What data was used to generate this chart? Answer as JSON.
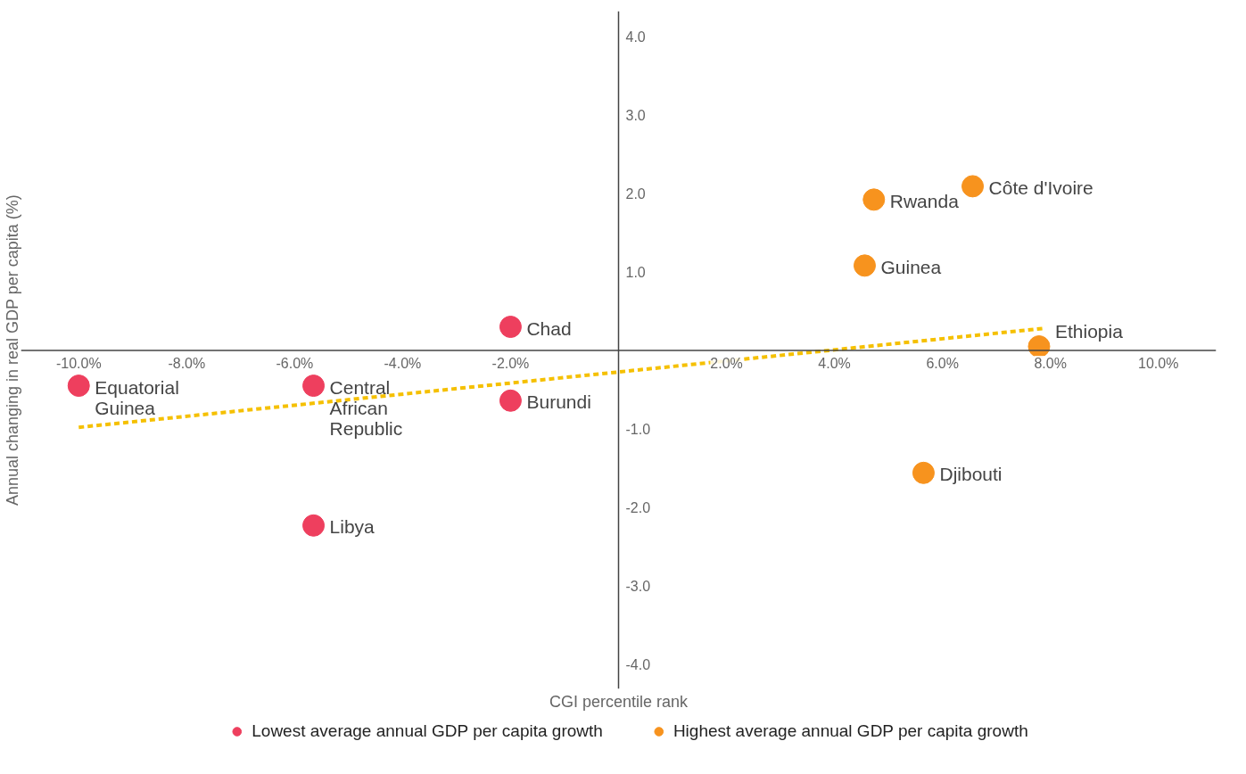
{
  "chart_data": {
    "type": "scatter",
    "xlabel": "CGI percentile rank",
    "ylabel": "Annual changing in real GDP per capita (%)",
    "xlim": [
      -11.07,
      11.07
    ],
    "ylim": [
      -4.31,
      4.32
    ],
    "xticks": [
      {
        "value": -10,
        "label": "-10.0%"
      },
      {
        "value": -8,
        "label": "-8.0%"
      },
      {
        "value": -6,
        "label": "-6.0%"
      },
      {
        "value": -4,
        "label": "-4.0%"
      },
      {
        "value": -2,
        "label": "-2.0%"
      },
      {
        "value": 2,
        "label": "2.0%"
      },
      {
        "value": 4,
        "label": "4.0%"
      },
      {
        "value": 6,
        "label": "6.0%"
      },
      {
        "value": 8,
        "label": "8.0%"
      },
      {
        "value": 10,
        "label": "10.0%"
      }
    ],
    "yticks": [
      {
        "value": -4,
        "label": "-4.0"
      },
      {
        "value": -3,
        "label": "-3.0"
      },
      {
        "value": -2,
        "label": "-2.0"
      },
      {
        "value": -1,
        "label": "-1.0"
      },
      {
        "value": 1,
        "label": "1.0"
      },
      {
        "value": 2,
        "label": "2.0"
      },
      {
        "value": 3,
        "label": "3.0"
      },
      {
        "value": 4,
        "label": "4.0"
      }
    ],
    "grid": false,
    "legend": "bottom",
    "series": [
      {
        "name": "Lowest average annual GDP per capita growth",
        "color": "#ee3f5e",
        "marker": "circle",
        "x": [
          -10.0,
          -5.65,
          -2.0,
          -2.0,
          -5.65
        ],
        "values": [
          -0.45,
          -0.45,
          0.3,
          -0.64,
          -2.23
        ]
      },
      {
        "name": "Highest average annual GDP per capita growth",
        "color": "#f7931e",
        "marker": "circle",
        "x": [
          4.73,
          6.56,
          4.56,
          7.79,
          5.65
        ],
        "values": [
          1.92,
          2.09,
          1.08,
          0.05,
          -1.56
        ]
      },
      {
        "type": "line",
        "color": "#f5c000",
        "line_style": "dashed",
        "x": [
          -10.0,
          7.87
        ],
        "values": [
          -0.98,
          0.28
        ]
      }
    ],
    "annotations": [
      {
        "text": "Equatorial\nGuinea",
        "x": -10.0,
        "y": -0.45
      },
      {
        "text": "Central\nAfrican\nRepublic",
        "x": -5.65,
        "y": -0.45
      },
      {
        "text": "Chad",
        "x": -2.0,
        "y": 0.3
      },
      {
        "text": "Burundi",
        "x": -2.0,
        "y": -0.64
      },
      {
        "text": "Libya",
        "x": -5.65,
        "y": -2.23
      },
      {
        "text": "Rwanda",
        "x": 4.73,
        "y": 1.92
      },
      {
        "text": "Côte d'Ivoire",
        "x": 6.56,
        "y": 2.09
      },
      {
        "text": "Guinea",
        "x": 4.56,
        "y": 1.08
      },
      {
        "text": "Ethiopia",
        "x": 7.79,
        "y": 0.05
      },
      {
        "text": "Djibouti",
        "x": 5.65,
        "y": -1.56
      }
    ]
  }
}
